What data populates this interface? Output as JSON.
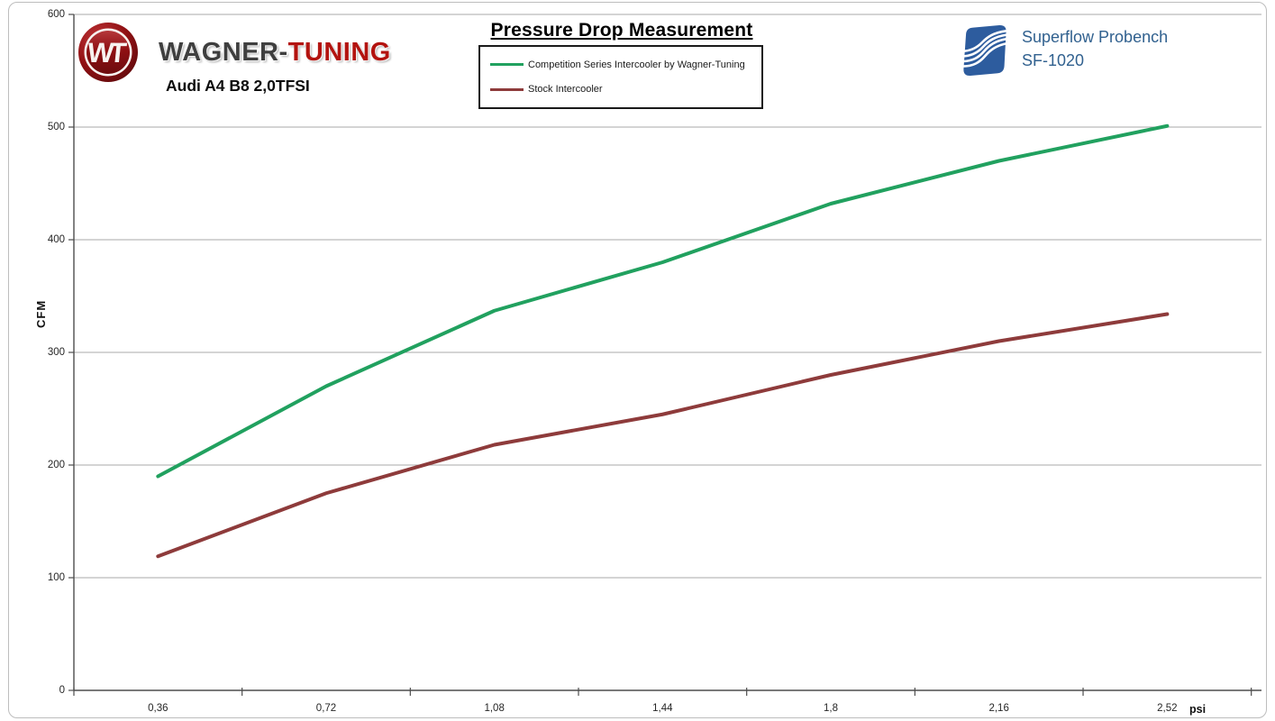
{
  "header": {
    "brand": {
      "logo_monogram": "WT",
      "name_primary": "WAGNER-",
      "name_accent": "TUNING",
      "subtitle": "Audi A4 B8 2,0TFSI"
    },
    "title": "Pressure Drop Measurement",
    "bench": {
      "line1": "Superflow Probench",
      "line2": "SF-1020"
    }
  },
  "colors": {
    "competition_line": "#21A15F",
    "stock_line": "#8E3B3B",
    "wagner_red": "#9E1417",
    "superflow_blue": "#2D5C9E",
    "superflow_text": "#31618F",
    "gridline": "#A8A8A8",
    "axis": "#4D4D4D"
  },
  "chart_data": {
    "type": "line",
    "title": "Pressure Drop Measurement",
    "xlabel": "psi",
    "ylabel": "CFM",
    "x": [
      0.36,
      0.72,
      1.08,
      1.44,
      1.8,
      2.16,
      2.52
    ],
    "x_tick_labels": [
      "0,36",
      "0,72",
      "1,08",
      "1,44",
      "1,8",
      "2,16",
      "2,52"
    ],
    "ylim": [
      0,
      600
    ],
    "y_tick_step": 100,
    "y_tick_labels": [
      "0",
      "100",
      "200",
      "300",
      "400",
      "500",
      "600"
    ],
    "grid": "horizontal",
    "legend_position": "top-center-boxed",
    "series": [
      {
        "name": "Competition Series Intercooler by Wagner-Tuning",
        "color": "#21A15F",
        "values": [
          190,
          270,
          337,
          380,
          432,
          470,
          501
        ]
      },
      {
        "name": "Stock Intercooler",
        "color": "#8E3B3B",
        "values": [
          119,
          175,
          218,
          245,
          280,
          310,
          334
        ]
      }
    ]
  }
}
